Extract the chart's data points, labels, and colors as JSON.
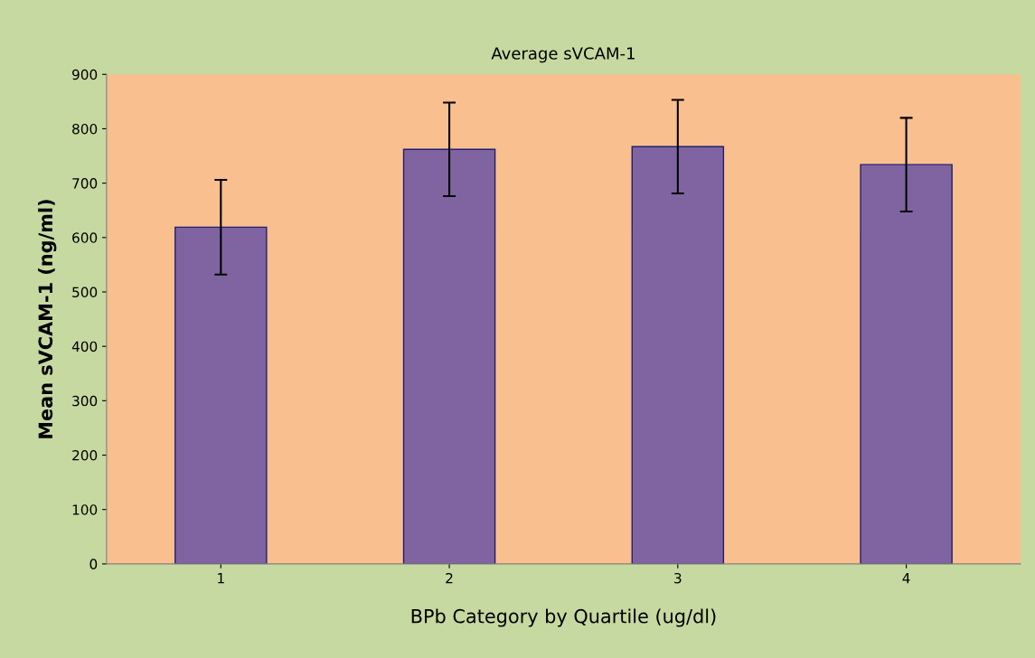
{
  "chart_data": {
    "type": "bar",
    "title": "Average sVCAM-1",
    "xlabel": "BPb Category by Quartile (ug/dl)",
    "ylabel": "Mean sVCAM-1 (ng/ml)",
    "categories": [
      "1",
      "2",
      "3",
      "4"
    ],
    "values": [
      619,
      762,
      767,
      734
    ],
    "errors": [
      87,
      86,
      86,
      86
    ],
    "color": "#8064a2",
    "ylim": [
      0,
      900
    ],
    "yticks": [
      0,
      100,
      200,
      300,
      400,
      500,
      600,
      700,
      800,
      900
    ],
    "grid": false,
    "legend": false
  }
}
